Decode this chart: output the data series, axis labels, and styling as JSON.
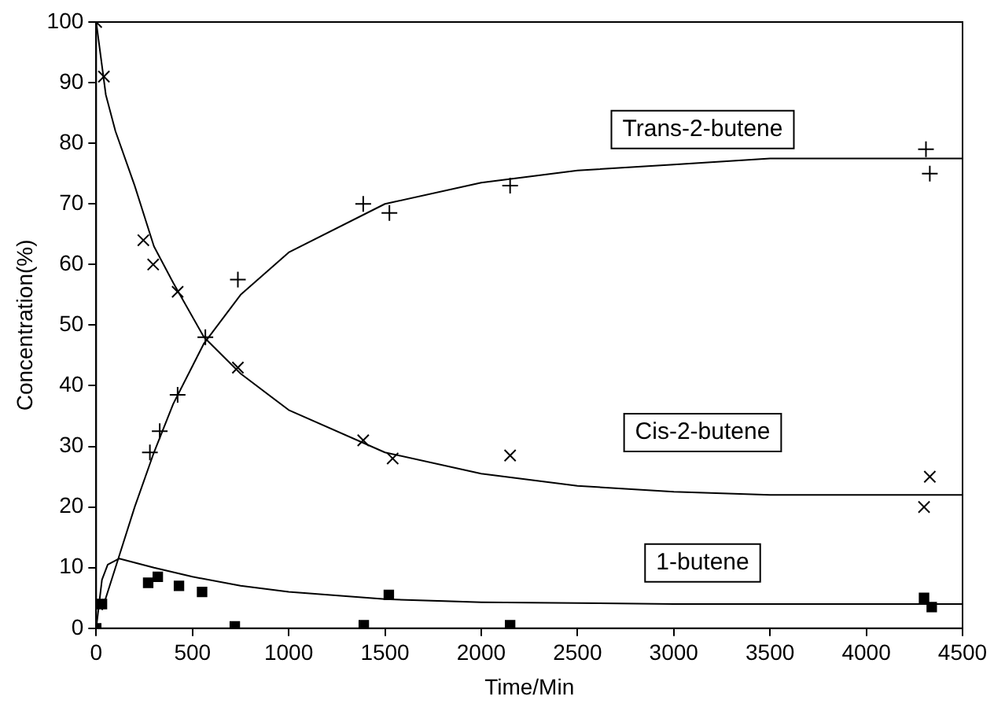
{
  "chart_data": {
    "type": "scatter",
    "xlabel": "Time/Min",
    "ylabel": "Concentration(%)",
    "xlim": [
      0,
      4500
    ],
    "xticks": [
      0,
      500,
      1000,
      1500,
      2000,
      2500,
      3000,
      3500,
      4000,
      4500
    ],
    "ylim": [
      0,
      100
    ],
    "yticks": [
      0,
      10,
      20,
      30,
      40,
      50,
      60,
      70,
      80,
      90,
      100
    ],
    "grid": false,
    "legend": false,
    "series": [
      {
        "marker": "cross",
        "color": "#000000",
        "x": [
          0,
          40,
          245,
          296,
          423,
          736,
          1387,
          1540,
          2150,
          4300,
          4330
        ],
        "values": [
          100,
          91,
          64,
          60,
          55.5,
          43,
          31,
          28,
          28.5,
          20,
          25
        ]
      },
      {
        "marker": "plus",
        "color": "#000000",
        "x": [
          279,
          330,
          423,
          567,
          736,
          1387,
          1523,
          2150,
          4310,
          4330
        ],
        "values": [
          29,
          32.5,
          38.5,
          48,
          57.5,
          70,
          68.5,
          73,
          79,
          75
        ]
      },
      {
        "marker": "square",
        "color": "#000000",
        "x": [
          0,
          30,
          270,
          320,
          430,
          550,
          720,
          1390,
          1520,
          2150,
          4300,
          4340
        ],
        "values": [
          0,
          4,
          7.5,
          8.5,
          7,
          6,
          0.3,
          0.5,
          5.5,
          0.5,
          5,
          3.5
        ]
      },
      {
        "type": "line",
        "marker": "none",
        "color": "#000000",
        "x": [
          0,
          50,
          100,
          200,
          300,
          400,
          560,
          750,
          1000,
          1500,
          2000,
          2500,
          3000,
          3500,
          4500
        ],
        "values": [
          100,
          88,
          82,
          73,
          63,
          57,
          48,
          42,
          36,
          29,
          25.5,
          23.5,
          22.5,
          22,
          22
        ]
      },
      {
        "type": "line",
        "marker": "none",
        "color": "#000000",
        "x": [
          30,
          100,
          200,
          300,
          400,
          560,
          750,
          1000,
          1500,
          2000,
          2500,
          3000,
          3500,
          4500
        ],
        "values": [
          3,
          10,
          20,
          29,
          37,
          47,
          55,
          62,
          70,
          73.5,
          75.5,
          76.5,
          77.5,
          77.5
        ]
      },
      {
        "type": "line",
        "marker": "none",
        "color": "#000000",
        "x": [
          0,
          30,
          60,
          120,
          300,
          500,
          750,
          1000,
          1500,
          2000,
          3000,
          4500
        ],
        "values": [
          0,
          8,
          10.5,
          11.5,
          10,
          8.5,
          7,
          6,
          4.8,
          4.3,
          4,
          4
        ]
      }
    ],
    "annotations": [
      "Cis-2-butene",
      "Trans-2-butene",
      "1-butene"
    ]
  }
}
